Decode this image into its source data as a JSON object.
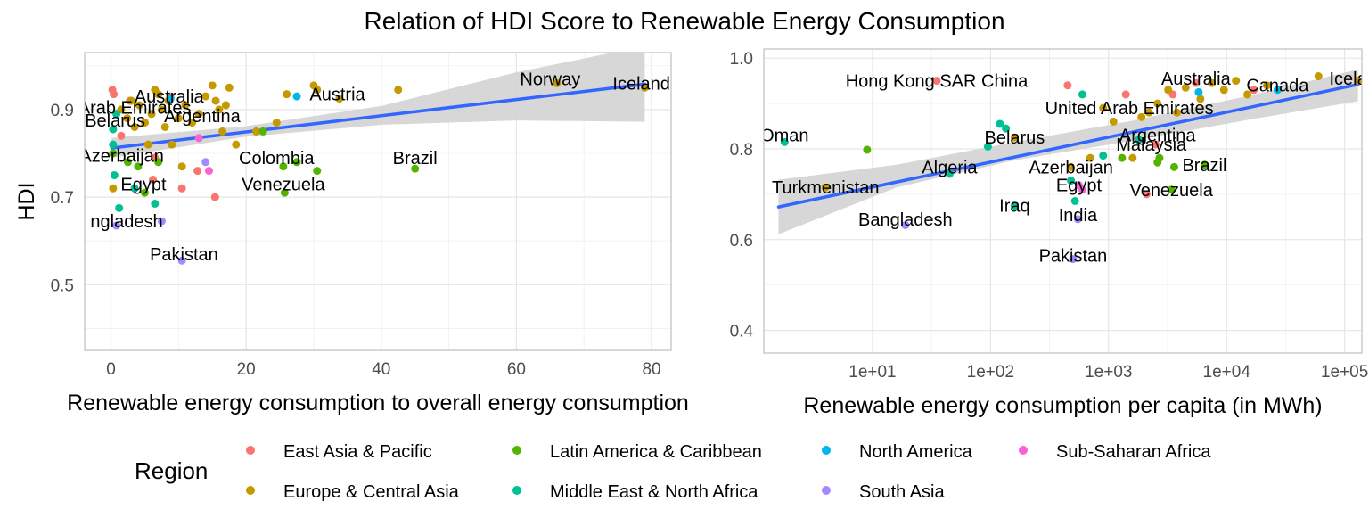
{
  "title": "Relation of HDI Score to Renewable Energy Consumption",
  "legend": {
    "title": "Region",
    "items": [
      {
        "name": "East Asia & Pacific",
        "color": "#F8766D"
      },
      {
        "name": "Europe & Central Asia",
        "color": "#C49A00"
      },
      {
        "name": "Latin America & Caribbean",
        "color": "#53B400"
      },
      {
        "name": "Middle East & North Africa",
        "color": "#00C094"
      },
      {
        "name": "North America",
        "color": "#00B6EB"
      },
      {
        "name": "South Asia",
        "color": "#A58AFF"
      },
      {
        "name": "Sub-Saharan Africa",
        "color": "#FB61D7"
      }
    ]
  },
  "colors": {
    "trend": "#3366FF",
    "ribbon": "#D3D3D3",
    "grid": "#E6E6E6",
    "panel_border": "#BDBDBD"
  },
  "chart_data": [
    {
      "type": "scatter",
      "xlabel": "Renewable energy consumption to overall energy consumption",
      "ylabel": "HDI",
      "xlim": [
        -3.9,
        82.9
      ],
      "ylim": [
        0.35,
        1.03
      ],
      "xticks": [
        0,
        20,
        40,
        60,
        80
      ],
      "xtick_labels": [
        "0",
        "20",
        "40",
        "60",
        "80"
      ],
      "yticks": [
        0.5,
        0.7,
        0.9
      ],
      "ytick_labels": [
        "0.5",
        "0.7",
        "0.9"
      ],
      "grid": true,
      "trend": {
        "x0": 0.1,
        "y0": 0.812,
        "x1": 79,
        "y1": 0.958
      },
      "ribbon": {
        "x": [
          0.1,
          20,
          40,
          60,
          79
        ],
        "low": [
          0.79,
          0.838,
          0.865,
          0.875,
          0.872
        ],
        "high": [
          0.835,
          0.862,
          0.908,
          0.985,
          1.045
        ]
      },
      "points": [
        {
          "x": 0.2,
          "y": 0.945,
          "r": "East Asia & Pacific"
        },
        {
          "x": 0.4,
          "y": 0.935,
          "r": "East Asia & Pacific"
        },
        {
          "x": 2.8,
          "y": 0.92,
          "r": "East Asia & Pacific"
        },
        {
          "x": 1.5,
          "y": 0.84,
          "r": "East Asia & Pacific"
        },
        {
          "x": 6.2,
          "y": 0.74,
          "r": "East Asia & Pacific"
        },
        {
          "x": 10.5,
          "y": 0.72,
          "r": "East Asia & Pacific"
        },
        {
          "x": 12.8,
          "y": 0.76,
          "r": "East Asia & Pacific"
        },
        {
          "x": 15.4,
          "y": 0.7,
          "r": "East Asia & Pacific"
        },
        {
          "x": 8.8,
          "y": 0.93,
          "r": "East Asia & Pacific"
        },
        {
          "x": 6.5,
          "y": 0.79,
          "r": "East Asia & Pacific"
        },
        {
          "x": 0.3,
          "y": 0.72,
          "r": "Europe & Central Asia"
        },
        {
          "x": 1.5,
          "y": 0.9,
          "r": "Europe & Central Asia"
        },
        {
          "x": 2.4,
          "y": 0.88,
          "r": "Europe & Central Asia"
        },
        {
          "x": 3.0,
          "y": 0.92,
          "r": "Europe & Central Asia"
        },
        {
          "x": 3.5,
          "y": 0.86,
          "r": "Europe & Central Asia"
        },
        {
          "x": 4.2,
          "y": 0.91,
          "r": "Europe & Central Asia"
        },
        {
          "x": 5.0,
          "y": 0.87,
          "r": "Europe & Central Asia"
        },
        {
          "x": 5.5,
          "y": 0.82,
          "r": "Europe & Central Asia"
        },
        {
          "x": 6.0,
          "y": 0.89,
          "r": "Europe & Central Asia"
        },
        {
          "x": 6.5,
          "y": 0.945,
          "r": "Europe & Central Asia"
        },
        {
          "x": 7.0,
          "y": 0.935,
          "r": "Europe & Central Asia"
        },
        {
          "x": 7.5,
          "y": 0.9,
          "r": "Europe & Central Asia"
        },
        {
          "x": 8.0,
          "y": 0.86,
          "r": "Europe & Central Asia"
        },
        {
          "x": 8.5,
          "y": 0.92,
          "r": "Europe & Central Asia"
        },
        {
          "x": 9.0,
          "y": 0.82,
          "r": "Europe & Central Asia"
        },
        {
          "x": 10.0,
          "y": 0.88,
          "r": "Europe & Central Asia"
        },
        {
          "x": 10.5,
          "y": 0.77,
          "r": "Europe & Central Asia"
        },
        {
          "x": 11.0,
          "y": 0.91,
          "r": "Europe & Central Asia"
        },
        {
          "x": 12.0,
          "y": 0.87,
          "r": "Europe & Central Asia"
        },
        {
          "x": 13.0,
          "y": 0.89,
          "r": "Europe & Central Asia"
        },
        {
          "x": 14.0,
          "y": 0.93,
          "r": "Europe & Central Asia"
        },
        {
          "x": 15.0,
          "y": 0.955,
          "r": "Europe & Central Asia"
        },
        {
          "x": 15.5,
          "y": 0.92,
          "r": "Europe & Central Asia"
        },
        {
          "x": 16.0,
          "y": 0.9,
          "r": "Europe & Central Asia"
        },
        {
          "x": 16.5,
          "y": 0.85,
          "r": "Europe & Central Asia"
        },
        {
          "x": 17.0,
          "y": 0.91,
          "r": "Europe & Central Asia"
        },
        {
          "x": 17.5,
          "y": 0.95,
          "r": "Europe & Central Asia"
        },
        {
          "x": 18.5,
          "y": 0.82,
          "r": "Europe & Central Asia"
        },
        {
          "x": 21.5,
          "y": 0.85,
          "r": "Europe & Central Asia"
        },
        {
          "x": 24.5,
          "y": 0.87,
          "r": "Europe & Central Asia"
        },
        {
          "x": 26.0,
          "y": 0.935,
          "r": "Europe & Central Asia"
        },
        {
          "x": 30.5,
          "y": 0.945,
          "r": "Europe & Central Asia"
        },
        {
          "x": 30.0,
          "y": 0.955,
          "r": "Europe & Central Asia"
        },
        {
          "x": 33.8,
          "y": 0.925,
          "r": "Europe & Central Asia"
        },
        {
          "x": 42.5,
          "y": 0.945,
          "r": "Europe & Central Asia"
        },
        {
          "x": 66.0,
          "y": 0.96,
          "r": "Europe & Central Asia"
        },
        {
          "x": 79.0,
          "y": 0.95,
          "r": "Europe & Central Asia"
        },
        {
          "x": 0.3,
          "y": 0.8,
          "r": "Latin America & Caribbean"
        },
        {
          "x": 2.5,
          "y": 0.78,
          "r": "Latin America & Caribbean"
        },
        {
          "x": 4.0,
          "y": 0.77,
          "r": "Latin America & Caribbean"
        },
        {
          "x": 5.0,
          "y": 0.71,
          "r": "Latin America & Caribbean"
        },
        {
          "x": 7.0,
          "y": 0.78,
          "r": "Latin America & Caribbean"
        },
        {
          "x": 22.5,
          "y": 0.85,
          "r": "Latin America & Caribbean"
        },
        {
          "x": 25.5,
          "y": 0.77,
          "r": "Latin America & Caribbean"
        },
        {
          "x": 25.7,
          "y": 0.71,
          "r": "Latin America & Caribbean"
        },
        {
          "x": 27.5,
          "y": 0.78,
          "r": "Latin America & Caribbean"
        },
        {
          "x": 30.5,
          "y": 0.76,
          "r": "Latin America & Caribbean"
        },
        {
          "x": 45.0,
          "y": 0.765,
          "r": "Latin America & Caribbean"
        },
        {
          "x": 0.3,
          "y": 0.855,
          "r": "Middle East & North Africa"
        },
        {
          "x": 0.3,
          "y": 0.82,
          "r": "Middle East & North Africa"
        },
        {
          "x": 0.5,
          "y": 0.75,
          "r": "Middle East & North Africa"
        },
        {
          "x": 0.8,
          "y": 0.89,
          "r": "Middle East & North Africa"
        },
        {
          "x": 1.2,
          "y": 0.675,
          "r": "Middle East & North Africa"
        },
        {
          "x": 3.5,
          "y": 0.72,
          "r": "Middle East & North Africa"
        },
        {
          "x": 6.5,
          "y": 0.685,
          "r": "Middle East & North Africa"
        },
        {
          "x": 27.5,
          "y": 0.93,
          "r": "North America"
        },
        {
          "x": 8.8,
          "y": 0.925,
          "r": "North America"
        },
        {
          "x": 0.8,
          "y": 0.635,
          "r": "South Asia"
        },
        {
          "x": 10.5,
          "y": 0.555,
          "r": "South Asia"
        },
        {
          "x": 14.0,
          "y": 0.78,
          "r": "South Asia"
        },
        {
          "x": 7.5,
          "y": 0.645,
          "r": "South Asia"
        },
        {
          "x": 14.5,
          "y": 0.76,
          "r": "Sub-Saharan Africa"
        },
        {
          "x": 13.0,
          "y": 0.835,
          "r": "Sub-Saharan Africa"
        }
      ],
      "labels": [
        {
          "text": "Australia",
          "x": 8.6,
          "y": 0.93
        },
        {
          "text": "Arab Emirates",
          "x": 3.5,
          "y": 0.905
        },
        {
          "text": "Belarus",
          "x": 0.6,
          "y": 0.875
        },
        {
          "text": "Argentina",
          "x": 13.5,
          "y": 0.885
        },
        {
          "text": "Azerbaijan",
          "x": 1.6,
          "y": 0.795
        },
        {
          "text": "Egypt",
          "x": 4.8,
          "y": 0.73
        },
        {
          "text": "ngladesh",
          "x": 2.3,
          "y": 0.645
        },
        {
          "text": "Pakistan",
          "x": 10.8,
          "y": 0.57
        },
        {
          "text": "Colombia",
          "x": 24.5,
          "y": 0.79
        },
        {
          "text": "Venezuela",
          "x": 25.5,
          "y": 0.73
        },
        {
          "text": "Austria",
          "x": 33.5,
          "y": 0.935
        },
        {
          "text": "Brazil",
          "x": 45.0,
          "y": 0.79
        },
        {
          "text": "Norway",
          "x": 65.0,
          "y": 0.97
        },
        {
          "text": "Iceland",
          "x": 78.5,
          "y": 0.96
        }
      ]
    },
    {
      "type": "scatter",
      "xlabel": "Renewable energy consumption per capita (in MWh)",
      "xscale": "log10",
      "xlim": [
        1.2,
        140000
      ],
      "ylim": [
        0.35,
        1.02
      ],
      "xticks": [
        10,
        100,
        1000,
        10000,
        100000
      ],
      "xtick_labels": [
        "1e+01",
        "1e+02",
        "1e+03",
        "1e+04",
        "1e+05"
      ],
      "yticks": [
        0.4,
        0.6,
        0.8,
        1.0
      ],
      "ytick_labels": [
        "0.4",
        "0.6",
        "0.8",
        "1.0"
      ],
      "grid": true,
      "trend": {
        "x0": 1.6,
        "y0": 0.672,
        "x1": 130000,
        "y1": 0.942
      },
      "ribbon": {
        "x": [
          1.6,
          16,
          160,
          1600,
          16000,
          130000
        ],
        "low": [
          0.612,
          0.715,
          0.775,
          0.818,
          0.865,
          0.905
        ],
        "high": [
          0.732,
          0.765,
          0.815,
          0.862,
          0.918,
          0.975
        ]
      },
      "points": [
        {
          "x": 35,
          "y": 0.95,
          "r": "East Asia & Pacific"
        },
        {
          "x": 450,
          "y": 0.94,
          "r": "East Asia & Pacific"
        },
        {
          "x": 1400,
          "y": 0.92,
          "r": "East Asia & Pacific"
        },
        {
          "x": 2100,
          "y": 0.7,
          "r": "East Asia & Pacific"
        },
        {
          "x": 3500,
          "y": 0.92,
          "r": "East Asia & Pacific"
        },
        {
          "x": 5500,
          "y": 0.945,
          "r": "East Asia & Pacific"
        },
        {
          "x": 17000,
          "y": 0.93,
          "r": "East Asia & Pacific"
        },
        {
          "x": 2500,
          "y": 0.81,
          "r": "East Asia & Pacific"
        },
        {
          "x": 4,
          "y": 0.715,
          "r": "Europe & Central Asia"
        },
        {
          "x": 160,
          "y": 0.825,
          "r": "Europe & Central Asia"
        },
        {
          "x": 480,
          "y": 0.76,
          "r": "Europe & Central Asia"
        },
        {
          "x": 700,
          "y": 0.78,
          "r": "Europe & Central Asia"
        },
        {
          "x": 900,
          "y": 0.89,
          "r": "Europe & Central Asia"
        },
        {
          "x": 1100,
          "y": 0.86,
          "r": "Europe & Central Asia"
        },
        {
          "x": 1600,
          "y": 0.78,
          "r": "Europe & Central Asia"
        },
        {
          "x": 1900,
          "y": 0.87,
          "r": "Europe & Central Asia"
        },
        {
          "x": 2200,
          "y": 0.88,
          "r": "Europe & Central Asia"
        },
        {
          "x": 2600,
          "y": 0.9,
          "r": "Europe & Central Asia"
        },
        {
          "x": 3200,
          "y": 0.93,
          "r": "Europe & Central Asia"
        },
        {
          "x": 3800,
          "y": 0.88,
          "r": "Europe & Central Asia"
        },
        {
          "x": 4500,
          "y": 0.935,
          "r": "Europe & Central Asia"
        },
        {
          "x": 6000,
          "y": 0.91,
          "r": "Europe & Central Asia"
        },
        {
          "x": 7500,
          "y": 0.945,
          "r": "Europe & Central Asia"
        },
        {
          "x": 9500,
          "y": 0.93,
          "r": "Europe & Central Asia"
        },
        {
          "x": 12000,
          "y": 0.95,
          "r": "Europe & Central Asia"
        },
        {
          "x": 15000,
          "y": 0.92,
          "r": "Europe & Central Asia"
        },
        {
          "x": 22000,
          "y": 0.94,
          "r": "Europe & Central Asia"
        },
        {
          "x": 60000,
          "y": 0.96,
          "r": "Europe & Central Asia"
        },
        {
          "x": 130000,
          "y": 0.95,
          "r": "Europe & Central Asia"
        },
        {
          "x": 9,
          "y": 0.798,
          "r": "Latin America & Caribbean"
        },
        {
          "x": 1300,
          "y": 0.78,
          "r": "Latin America & Caribbean"
        },
        {
          "x": 2600,
          "y": 0.77,
          "r": "Latin America & Caribbean"
        },
        {
          "x": 2700,
          "y": 0.78,
          "r": "Latin America & Caribbean"
        },
        {
          "x": 3600,
          "y": 0.76,
          "r": "Latin America & Caribbean"
        },
        {
          "x": 3400,
          "y": 0.71,
          "r": "Latin America & Caribbean"
        },
        {
          "x": 6500,
          "y": 0.765,
          "r": "Latin America & Caribbean"
        },
        {
          "x": 1.8,
          "y": 0.815,
          "r": "Middle East & North Africa"
        },
        {
          "x": 45,
          "y": 0.745,
          "r": "Middle East & North Africa"
        },
        {
          "x": 95,
          "y": 0.805,
          "r": "Middle East & North Africa"
        },
        {
          "x": 120,
          "y": 0.855,
          "r": "Middle East & North Africa"
        },
        {
          "x": 135,
          "y": 0.845,
          "r": "Middle East & North Africa"
        },
        {
          "x": 160,
          "y": 0.675,
          "r": "Middle East & North Africa"
        },
        {
          "x": 480,
          "y": 0.73,
          "r": "Middle East & North Africa"
        },
        {
          "x": 520,
          "y": 0.685,
          "r": "Middle East & North Africa"
        },
        {
          "x": 600,
          "y": 0.92,
          "r": "Middle East & North Africa"
        },
        {
          "x": 900,
          "y": 0.785,
          "r": "Middle East & North Africa"
        },
        {
          "x": 1800,
          "y": 0.82,
          "r": "Middle East & North Africa"
        },
        {
          "x": 5800,
          "y": 0.925,
          "r": "North America"
        },
        {
          "x": 27000,
          "y": 0.93,
          "r": "North America"
        },
        {
          "x": 19,
          "y": 0.632,
          "r": "South Asia"
        },
        {
          "x": 500,
          "y": 0.557,
          "r": "South Asia"
        },
        {
          "x": 550,
          "y": 0.645,
          "r": "South Asia"
        },
        {
          "x": 560,
          "y": 0.72,
          "r": "Sub-Saharan Africa"
        },
        {
          "x": 600,
          "y": 0.71,
          "r": "Sub-Saharan Africa"
        }
      ],
      "labels": [
        {
          "text": "Hong Kong SAR China",
          "x": 35,
          "y": 0.95
        },
        {
          "text": "Australia",
          "x": 5500,
          "y": 0.955
        },
        {
          "text": "Canada",
          "x": 27000,
          "y": 0.94
        },
        {
          "text": "Iceland",
          "x": 130000,
          "y": 0.955
        },
        {
          "text": "United Arab Emirates",
          "x": 1500,
          "y": 0.89
        },
        {
          "text": "Argentina",
          "x": 2600,
          "y": 0.83
        },
        {
          "text": "Malaysia",
          "x": 2300,
          "y": 0.81
        },
        {
          "text": "Oman",
          "x": 1.8,
          "y": 0.83
        },
        {
          "text": "Belarus",
          "x": 160,
          "y": 0.825
        },
        {
          "text": "Algeria",
          "x": 45,
          "y": 0.76
        },
        {
          "text": "Azerbaijan",
          "x": 480,
          "y": 0.76
        },
        {
          "text": "Brazil",
          "x": 6500,
          "y": 0.765
        },
        {
          "text": "Turkmenistan",
          "x": 4,
          "y": 0.715
        },
        {
          "text": "Egypt",
          "x": 560,
          "y": 0.72
        },
        {
          "text": "Venezuela",
          "x": 3400,
          "y": 0.71
        },
        {
          "text": "Iraq",
          "x": 160,
          "y": 0.675
        },
        {
          "text": "India",
          "x": 550,
          "y": 0.655
        },
        {
          "text": "Bangladesh",
          "x": 19,
          "y": 0.645
        },
        {
          "text": "Pakistan",
          "x": 500,
          "y": 0.565
        }
      ]
    }
  ]
}
